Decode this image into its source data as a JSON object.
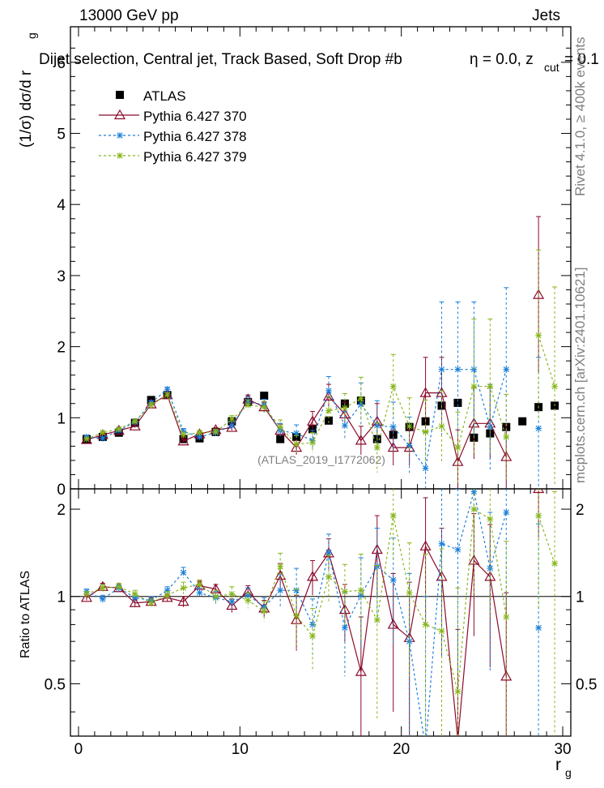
{
  "header": {
    "left": "13000 GeV pp",
    "right": "Jets",
    "title": "Dijet selection, Central jet, Track Based, Soft Drop #b",
    "eta": "η = 0.0, z",
    "zsub": "cut",
    "zval": "= 0.1"
  },
  "side": {
    "rivet": "Rivet 4.1.0, ≥ 400k events",
    "mcplots": "mcplots.cern.ch [arXiv:2401.10621]"
  },
  "watermark": "(ATLAS_2019_I1772062)",
  "axes": {
    "top_ylabel": "(1/σ) dσ/d r",
    "top_ylabel_sub": "g",
    "bottom_ylabel": "Ratio to ATLAS",
    "xlabel": "r",
    "xlabel_sub": "g"
  },
  "colors": {
    "atlas": "#000000",
    "p370": "#8b0a2a",
    "p378": "#1a7fd8",
    "p379": "#86b51a"
  },
  "chart_data": [
    {
      "type": "scatter",
      "panel": "main",
      "xlim": [
        -0.5,
        30.5
      ],
      "ylim": [
        0,
        6.5
      ],
      "yticks": [
        0,
        1,
        2,
        3,
        4,
        5,
        6
      ],
      "xticks": [
        0,
        10,
        20,
        30
      ],
      "legend_position": "top-left",
      "x": [
        0.5,
        1.5,
        2.5,
        3.5,
        4.5,
        5.5,
        6.5,
        7.5,
        8.5,
        9.5,
        10.5,
        11.5,
        12.5,
        13.5,
        14.5,
        15.5,
        16.5,
        17.5,
        18.5,
        19.5,
        20.5,
        21.5,
        22.5,
        23.5,
        24.5,
        25.5,
        26.5,
        27.5,
        28.5,
        29.5
      ],
      "series": [
        {
          "name": "ATLAS",
          "key": "atlas",
          "marker": "square",
          "values": [
            0.7,
            0.73,
            0.79,
            0.93,
            1.25,
            1.32,
            0.7,
            0.71,
            0.8,
            0.95,
            1.22,
            1.31,
            0.7,
            0.73,
            0.84,
            0.96,
            1.2,
            1.24,
            0.7,
            0.76,
            0.87,
            0.95,
            1.17,
            1.21,
            0.72,
            0.78,
            0.87,
            0.95,
            1.15,
            1.17
          ]
        },
        {
          "name": "Pythia 6.427 370",
          "key": "p370",
          "marker": "triangle",
          "dash": "solid",
          "values": [
            0.69,
            0.76,
            0.82,
            0.88,
            1.19,
            1.32,
            0.67,
            0.77,
            0.83,
            0.86,
            1.26,
            1.15,
            0.82,
            0.58,
            0.95,
            1.3,
            1.05,
            0.68,
            0.95,
            0.58,
            0.58,
            1.35,
            1.35,
            0.38,
            0.92,
            0.92,
            0.45,
            null,
            2.73,
            null
          ],
          "err": [
            0.02,
            0.02,
            0.02,
            0.02,
            0.03,
            0.03,
            0.03,
            0.03,
            0.03,
            0.04,
            0.06,
            0.07,
            0.09,
            0.1,
            0.14,
            0.17,
            0.17,
            0.2,
            0.25,
            0.25,
            0.25,
            0.5,
            0.5,
            0.45,
            0.5,
            0.5,
            0.45,
            0,
            1.1,
            0
          ]
        },
        {
          "name": "Pythia 6.427 378",
          "key": "p378",
          "marker": "star",
          "dash": "dashed",
          "values": [
            0.73,
            0.71,
            0.82,
            0.94,
            1.21,
            1.4,
            0.81,
            0.73,
            0.79,
            0.89,
            1.23,
            1.18,
            0.82,
            0.78,
            0.68,
            1.38,
            0.89,
            1.19,
            0.89,
            0.87,
            0.61,
            0.29,
            1.68,
            1.68,
            1.68,
            0.87,
            1.68,
            null,
            0.85,
            null
          ],
          "err": [
            0.02,
            0.02,
            0.02,
            0.02,
            0.03,
            0.03,
            0.04,
            0.03,
            0.04,
            0.05,
            0.07,
            0.08,
            0.1,
            0.12,
            0.14,
            0.2,
            0.2,
            0.3,
            0.35,
            0.35,
            0.4,
            0.5,
            0.95,
            0.95,
            0.95,
            0.6,
            1.15,
            0,
            1.0,
            0
          ]
        },
        {
          "name": "Pythia 6.427 379",
          "key": "p379",
          "marker": "star",
          "dash": "dashed",
          "values": [
            0.7,
            0.79,
            0.84,
            0.95,
            1.18,
            1.32,
            0.76,
            0.79,
            0.8,
            0.98,
            1.18,
            1.15,
            0.87,
            0.63,
            0.65,
            1.1,
            1.14,
            1.27,
            0.58,
            1.44,
            0.88,
            0.8,
            0.88,
            0.58,
            1.44,
            1.44,
            0.73,
            null,
            2.16,
            1.44
          ],
          "err": [
            0.02,
            0.02,
            0.02,
            0.02,
            0.03,
            0.03,
            0.04,
            0.03,
            0.04,
            0.05,
            0.07,
            0.08,
            0.1,
            0.12,
            0.14,
            0.2,
            0.2,
            0.3,
            0.35,
            0.45,
            0.4,
            0.45,
            0.5,
            0.5,
            0.95,
            0.95,
            0.6,
            0,
            1.2,
            1.4
          ]
        }
      ]
    },
    {
      "type": "scatter",
      "panel": "ratio",
      "xlim": [
        -0.5,
        30.5
      ],
      "ylim": [
        0.33,
        2.35
      ],
      "yticks": [
        0.5,
        1,
        2
      ],
      "xticks": [
        0,
        10,
        20,
        30
      ],
      "x": [
        0.5,
        1.5,
        2.5,
        3.5,
        4.5,
        5.5,
        6.5,
        7.5,
        8.5,
        9.5,
        10.5,
        11.5,
        12.5,
        13.5,
        14.5,
        15.5,
        16.5,
        17.5,
        18.5,
        19.5,
        20.5,
        21.5,
        22.5,
        23.5,
        24.5,
        25.5,
        26.5,
        27.5,
        28.5,
        29.5
      ],
      "series": [
        {
          "name": "Pythia 6.427 370",
          "key": "p370",
          "marker": "triangle",
          "dash": "solid",
          "values": [
            0.99,
            1.08,
            1.07,
            0.95,
            0.96,
            0.99,
            0.96,
            1.09,
            1.06,
            0.93,
            1.04,
            0.91,
            1.18,
            0.83,
            1.17,
            1.41,
            0.9,
            0.55,
            1.45,
            0.8,
            0.72,
            1.49,
            1.17,
            0.32,
            1.33,
            1.17,
            0.53,
            null,
            2.35,
            null
          ],
          "err": [
            0.02,
            0.03,
            0.03,
            0.03,
            0.03,
            0.03,
            0.04,
            0.04,
            0.04,
            0.05,
            0.05,
            0.06,
            0.12,
            0.18,
            0.16,
            0.17,
            0.2,
            0.3,
            0.45,
            0.4,
            0.4,
            0.7,
            0.55,
            0.45,
            0.6,
            0.6,
            0.5,
            0,
            0.75,
            0
          ]
        },
        {
          "name": "Pythia 6.427 378",
          "key": "p378",
          "marker": "star",
          "dash": "dashed",
          "values": [
            1.04,
            0.98,
            1.07,
            0.99,
            0.97,
            1.05,
            1.21,
            1.03,
            0.99,
            0.96,
            1.01,
            0.92,
            1.05,
            1.05,
            0.8,
            1.42,
            0.78,
            1.01,
            1.27,
            1.14,
            0.7,
            0.3,
            1.52,
            1.45,
            2.3,
            1.25,
            1.95,
            null,
            0.78,
            null
          ],
          "err": [
            0.02,
            0.03,
            0.03,
            0.03,
            0.03,
            0.03,
            0.05,
            0.04,
            0.05,
            0.06,
            0.06,
            0.07,
            0.14,
            0.2,
            0.18,
            0.22,
            0.25,
            0.35,
            0.45,
            0.45,
            0.5,
            0.7,
            0.9,
            0.9,
            1.0,
            0.7,
            1.0,
            0,
            1.0,
            0
          ]
        },
        {
          "name": "Pythia 6.427 379",
          "key": "p379",
          "marker": "star",
          "dash": "dashed",
          "values": [
            1.02,
            1.07,
            1.08,
            1.02,
            0.95,
            1.01,
            1.07,
            1.1,
            1.0,
            1.02,
            0.97,
            0.89,
            1.27,
            0.86,
            0.73,
            1.17,
            1.04,
            1.05,
            0.83,
            1.9,
            1.03,
            0.8,
            0.76,
            0.47,
            2.0,
            1.85,
            0.85,
            null,
            1.9,
            1.3
          ],
          "err": [
            0.02,
            0.03,
            0.03,
            0.03,
            0.03,
            0.03,
            0.05,
            0.04,
            0.05,
            0.06,
            0.06,
            0.07,
            0.14,
            0.2,
            0.18,
            0.22,
            0.25,
            0.35,
            0.45,
            0.55,
            0.5,
            0.6,
            0.7,
            0.6,
            1.0,
            1.0,
            0.7,
            0,
            1.0,
            1.0
          ]
        }
      ]
    }
  ]
}
